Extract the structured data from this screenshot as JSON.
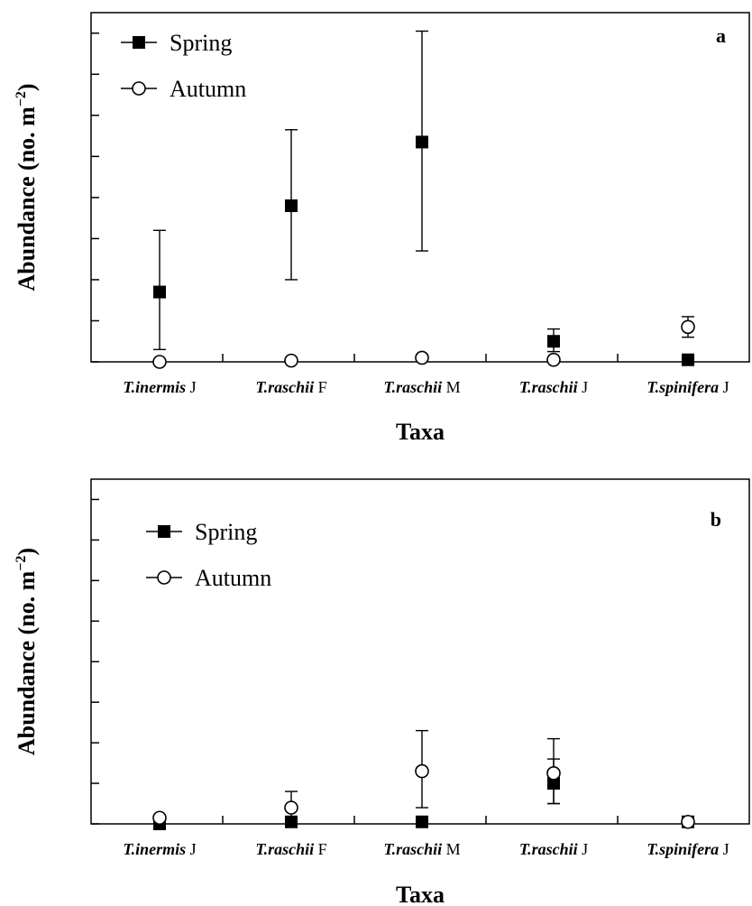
{
  "chart_data": [
    {
      "type": "scatter",
      "panel_label": "a",
      "xlabel": "Taxa",
      "ylabel": "Abundance (no. m",
      "ylabel_sup": "−2",
      "ylabel_end": ")",
      "ylim": [
        0,
        85
      ],
      "yticks": [
        0,
        10,
        20,
        30,
        40,
        50,
        60,
        70,
        80
      ],
      "categories": [
        {
          "taxon": "T.inermis",
          "stage": "J"
        },
        {
          "taxon": "T.raschii",
          "stage": "F"
        },
        {
          "taxon": "T.raschii",
          "stage": "M"
        },
        {
          "taxon": "T.raschii",
          "stage": "J"
        },
        {
          "taxon": "T.spinifera",
          "stage": "J"
        }
      ],
      "legend_position": "top-left",
      "series": [
        {
          "name": "Spring",
          "marker": "filled-square",
          "values": [
            17,
            38,
            53.5,
            5,
            0.5
          ],
          "err_low": [
            3,
            20,
            27,
            2.5,
            null
          ],
          "err_high": [
            32,
            56.5,
            80.5,
            8,
            null
          ]
        },
        {
          "name": "Autumn",
          "marker": "open-circle",
          "values": [
            0,
            0.3,
            1,
            0.5,
            8.5
          ],
          "err_low": [
            null,
            null,
            null,
            null,
            6
          ],
          "err_high": [
            null,
            null,
            null,
            null,
            11
          ]
        }
      ]
    },
    {
      "type": "scatter",
      "panel_label": "b",
      "xlabel": "Taxa",
      "ylabel": "Abundance (no. m",
      "ylabel_sup": "−2",
      "ylabel_end": ")",
      "ylim": [
        0,
        85
      ],
      "yticks": [
        0,
        10,
        20,
        30,
        40,
        50,
        60,
        70,
        80
      ],
      "categories": [
        {
          "taxon": "T.inermis",
          "stage": "J"
        },
        {
          "taxon": "T.raschii",
          "stage": "F"
        },
        {
          "taxon": "T.raschii",
          "stage": "M"
        },
        {
          "taxon": "T.raschii",
          "stage": "J"
        },
        {
          "taxon": "T.spinifera",
          "stage": "J"
        }
      ],
      "legend_position": "top-left",
      "series": [
        {
          "name": "Spring",
          "marker": "filled-square",
          "values": [
            0,
            0.5,
            0.5,
            10,
            0.5
          ],
          "err_low": [
            null,
            null,
            null,
            5,
            null
          ],
          "err_high": [
            null,
            null,
            null,
            16,
            null
          ]
        },
        {
          "name": "Autumn",
          "marker": "open-circle",
          "values": [
            1.5,
            4,
            13,
            12.5,
            0.5
          ],
          "err_low": [
            null,
            0,
            4,
            5,
            null
          ],
          "err_high": [
            null,
            8,
            23,
            21,
            null
          ]
        }
      ]
    }
  ]
}
